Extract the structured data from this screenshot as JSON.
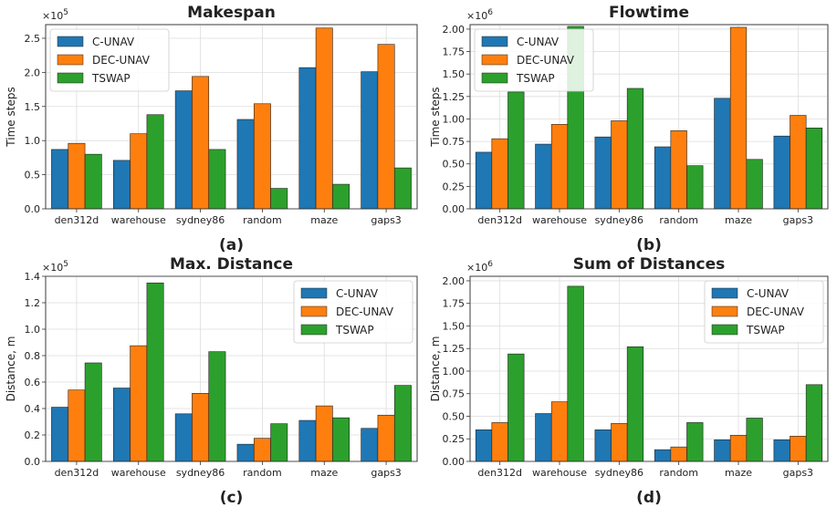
{
  "colors": {
    "C-UNAV": "#1f77b4",
    "DEC-UNAV": "#ff7f0e",
    "TSWAP": "#2ca02c"
  },
  "chart_data": [
    {
      "type": "bar",
      "panel_label": "(a)",
      "title": "Makespan",
      "ylabel": "Time steps",
      "multiplier": "×10",
      "multiplier_exp": "5",
      "categories": [
        "den312d",
        "warehouse",
        "sydney86",
        "random",
        "maze",
        "gaps3"
      ],
      "ylim": [
        0,
        2.7
      ],
      "yticks": [
        "0.0",
        "0.5",
        "1.0",
        "1.5",
        "2.0",
        "2.5"
      ],
      "ytick_values": [
        0,
        0.5,
        1.0,
        1.5,
        2.0,
        2.5
      ],
      "legend_pos": "top-left",
      "series": [
        {
          "name": "C-UNAV",
          "values": [
            0.87,
            0.71,
            1.73,
            1.31,
            2.07,
            2.01
          ]
        },
        {
          "name": "DEC-UNAV",
          "values": [
            0.96,
            1.1,
            1.94,
            1.54,
            2.65,
            2.41
          ]
        },
        {
          "name": "TSWAP",
          "values": [
            0.8,
            1.38,
            0.87,
            0.3,
            0.36,
            0.6
          ]
        }
      ]
    },
    {
      "type": "bar",
      "panel_label": "(b)",
      "title": "Flowtime",
      "ylabel": "Time steps",
      "multiplier": "×10",
      "multiplier_exp": "6",
      "categories": [
        "den312d",
        "warehouse",
        "sydney86",
        "random",
        "maze",
        "gaps3"
      ],
      "ylim": [
        0,
        2.05
      ],
      "yticks": [
        "0.00",
        "0.25",
        "0.50",
        "0.75",
        "1.00",
        "1.25",
        "1.50",
        "1.75",
        "2.00"
      ],
      "ytick_values": [
        0,
        0.25,
        0.5,
        0.75,
        1.0,
        1.25,
        1.5,
        1.75,
        2.0
      ],
      "legend_pos": "top-left",
      "series": [
        {
          "name": "C-UNAV",
          "values": [
            0.63,
            0.72,
            0.8,
            0.69,
            1.23,
            0.81
          ]
        },
        {
          "name": "DEC-UNAV",
          "values": [
            0.78,
            0.94,
            0.98,
            0.87,
            2.02,
            1.04
          ]
        },
        {
          "name": "TSWAP",
          "values": [
            1.3,
            2.03,
            1.34,
            0.48,
            0.55,
            0.9
          ]
        }
      ]
    },
    {
      "type": "bar",
      "panel_label": "(c)",
      "title": "Max. Distance",
      "ylabel": "Distance, m",
      "multiplier": "×10",
      "multiplier_exp": "5",
      "categories": [
        "den312d",
        "warehouse",
        "sydney86",
        "random",
        "maze",
        "gaps3"
      ],
      "ylim": [
        0,
        1.4
      ],
      "yticks": [
        "0.0",
        "0.2",
        "0.4",
        "0.6",
        "0.8",
        "1.0",
        "1.2",
        "1.4"
      ],
      "ytick_values": [
        0,
        0.2,
        0.4,
        0.6,
        0.8,
        1.0,
        1.2,
        1.4
      ],
      "legend_pos": "top-right",
      "series": [
        {
          "name": "C-UNAV",
          "values": [
            0.41,
            0.555,
            0.36,
            0.13,
            0.31,
            0.25
          ]
        },
        {
          "name": "DEC-UNAV",
          "values": [
            0.54,
            0.875,
            0.515,
            0.175,
            0.42,
            0.35
          ]
        },
        {
          "name": "TSWAP",
          "values": [
            0.745,
            1.35,
            0.83,
            0.285,
            0.33,
            0.575
          ]
        }
      ]
    },
    {
      "type": "bar",
      "panel_label": "(d)",
      "title": "Sum of Distances",
      "ylabel": "Distance, m",
      "multiplier": "×10",
      "multiplier_exp": "6",
      "categories": [
        "den312d",
        "warehouse",
        "sydney86",
        "random",
        "maze",
        "gaps3"
      ],
      "ylim": [
        0,
        2.05
      ],
      "yticks": [
        "0.00",
        "0.25",
        "0.50",
        "0.75",
        "1.00",
        "1.25",
        "1.50",
        "1.75",
        "2.00"
      ],
      "ytick_values": [
        0,
        0.25,
        0.5,
        0.75,
        1.0,
        1.25,
        1.5,
        1.75,
        2.0
      ],
      "legend_pos": "top-right",
      "series": [
        {
          "name": "C-UNAV",
          "values": [
            0.35,
            0.53,
            0.35,
            0.13,
            0.24,
            0.24
          ]
        },
        {
          "name": "DEC-UNAV",
          "values": [
            0.43,
            0.66,
            0.42,
            0.16,
            0.29,
            0.28
          ]
        },
        {
          "name": "TSWAP",
          "values": [
            1.19,
            1.94,
            1.27,
            0.43,
            0.48,
            0.85
          ]
        }
      ]
    }
  ]
}
